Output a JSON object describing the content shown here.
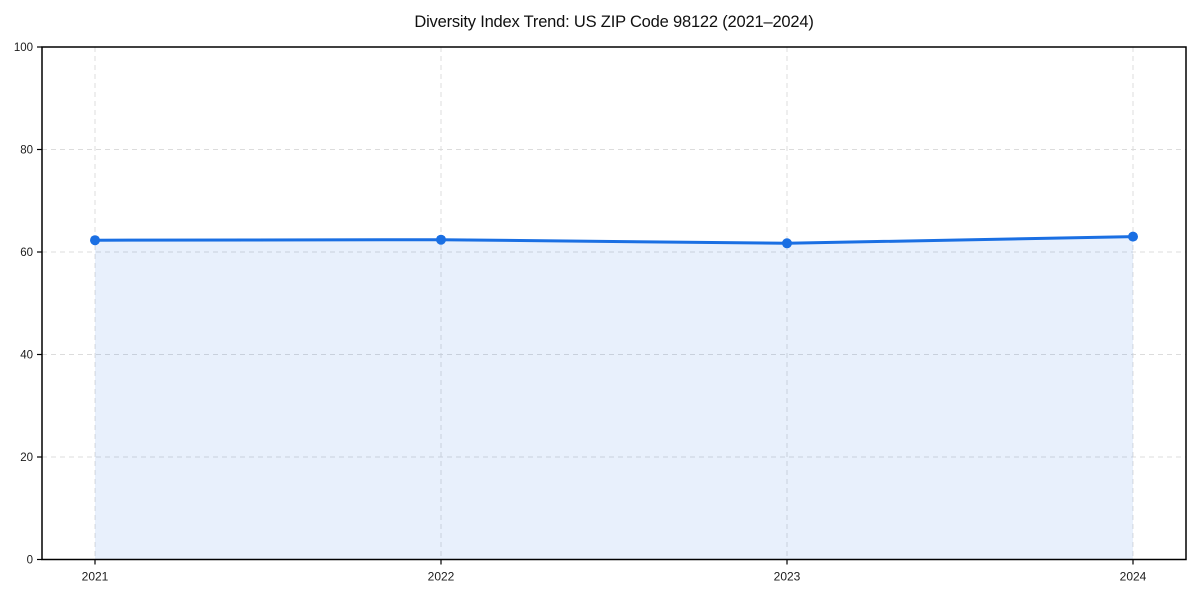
{
  "chart_data": {
    "type": "line",
    "title": "Diversity Index Trend: US ZIP Code 98122 (2021–2024)",
    "series_name": "Diversity Index",
    "categories": [
      "2021",
      "2022",
      "2023",
      "2024"
    ],
    "values": [
      62.3,
      62.4,
      61.7,
      63.0
    ],
    "xlabel": "",
    "ylabel": "",
    "ylim": [
      0,
      100
    ],
    "yticks": [
      0,
      20,
      40,
      60,
      80,
      100
    ],
    "grid": "dashed",
    "legend": "none",
    "marker": "circle",
    "area_fill": true,
    "area_opacity": 0.1,
    "colors": {
      "line": "#1a6fe3",
      "area": "#1a6fe3",
      "grid": "#dcdcdc",
      "axis": "#000000",
      "tick_text": "#1c1c1c",
      "title_text": "#101010",
      "background": "#ffffff"
    }
  }
}
